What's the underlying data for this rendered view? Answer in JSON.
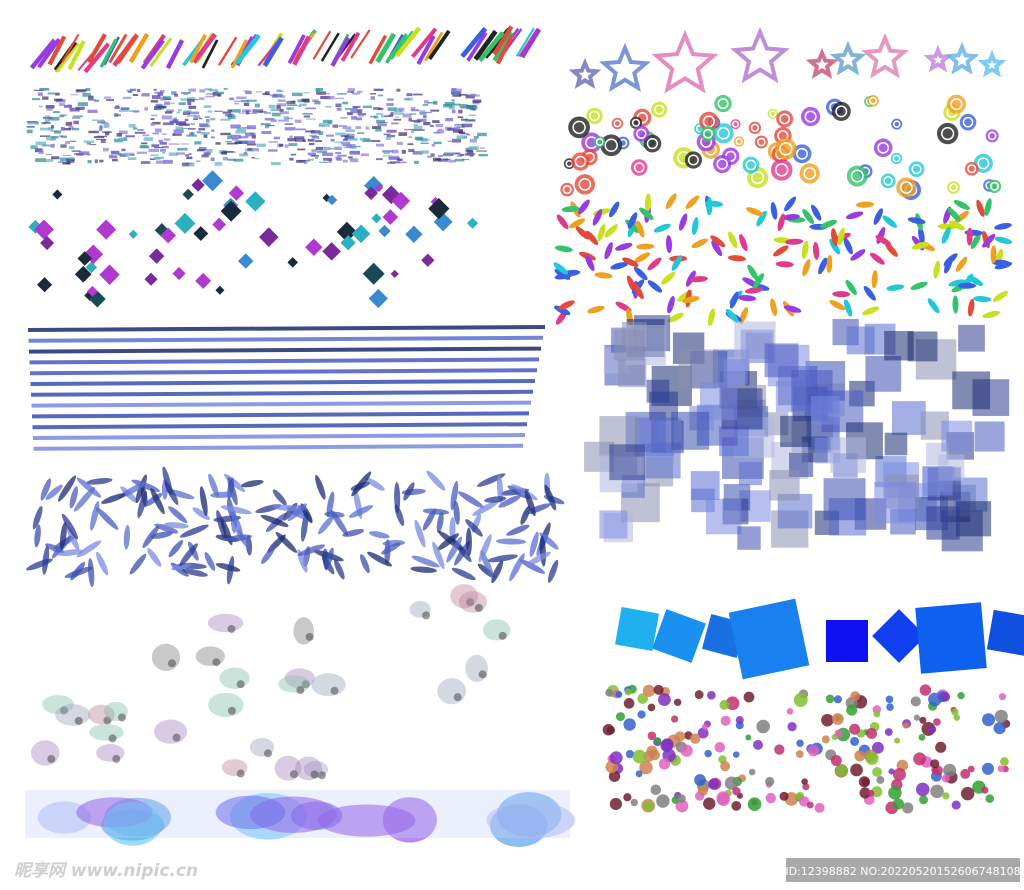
{
  "watermark": {
    "site": "昵享网 www.nipic.cn",
    "id": "ID:12398882 NO:20220520152606748108"
  }
}
